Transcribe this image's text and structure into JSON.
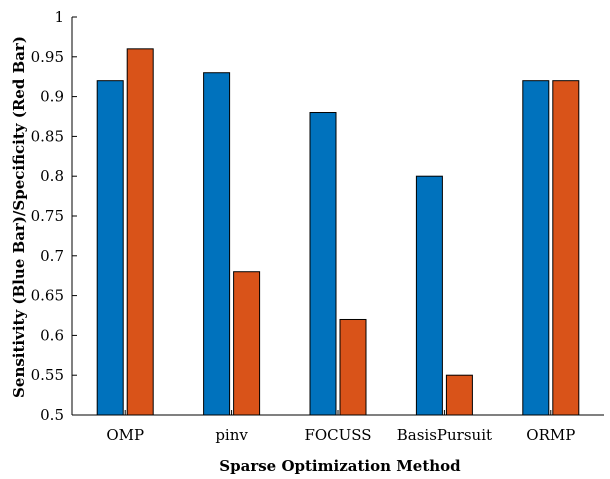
{
  "chart_data": {
    "type": "bar",
    "title": "",
    "xlabel": "Sparse Optimization Method",
    "ylabel": "Sensitivity (Blue Bar)/Specificity (Red Bar)",
    "categories": [
      "OMP",
      "pinv",
      "FOCUSS",
      "BasisPursuit",
      "ORMP"
    ],
    "series": [
      {
        "values": [
          0.92,
          0.93,
          0.88,
          0.8,
          0.92
        ],
        "color": "#0072BD"
      },
      {
        "values": [
          0.96,
          0.68,
          0.62,
          0.55,
          0.92
        ],
        "color": "#D95319"
      }
    ],
    "ylim": [
      0.5,
      1
    ],
    "yticks": [
      0.5,
      0.55,
      0.6,
      0.65,
      0.7,
      0.75,
      0.8,
      0.85,
      0.9,
      0.95,
      1
    ],
    "ytick_labels": [
      "0.5",
      "0.55",
      "0.6",
      "0.65",
      "0.7",
      "0.75",
      "0.8",
      "0.85",
      "0.9",
      "0.95",
      "1"
    ],
    "grid": false,
    "legend": "none"
  }
}
